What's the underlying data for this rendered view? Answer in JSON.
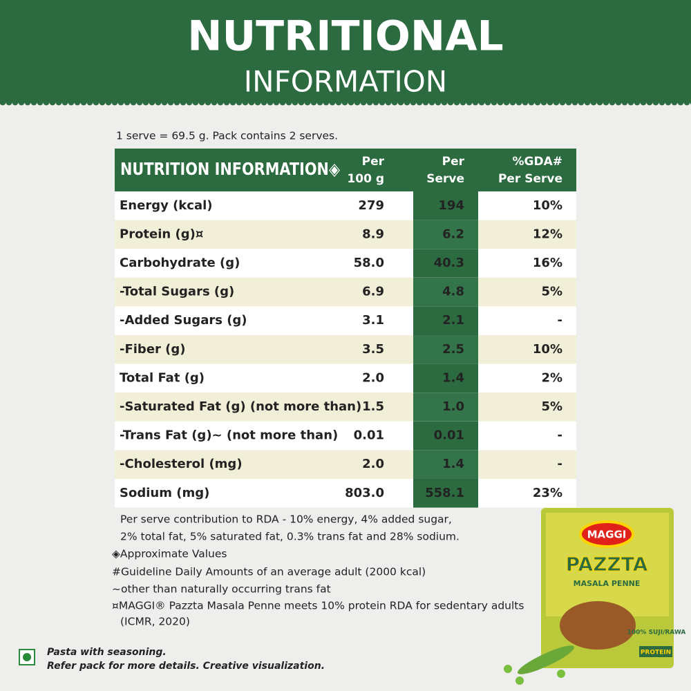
{
  "header": {
    "title": "NUTRITIONAL",
    "subtitle": "INFORMATION"
  },
  "serving_note": "1 serve = 69.5 g. Pack contains 2 serves.",
  "table": {
    "columns": [
      [
        "NUTRITION INFORMATION◈"
      ],
      [
        "Per",
        "100 g"
      ],
      [
        "Per",
        "Serve"
      ],
      [
        "%GDA#",
        "Per Serve"
      ]
    ],
    "rows": [
      [
        "Energy (kcal)",
        "279",
        "194",
        "10%"
      ],
      [
        "Protein (g)¤",
        "8.9",
        "6.2",
        "12%"
      ],
      [
        "Carbohydrate (g)",
        "58.0",
        "40.3",
        "16%"
      ],
      [
        " -Total Sugars (g)",
        "6.9",
        "4.8",
        "5%"
      ],
      [
        "  -Added Sugars (g)",
        "3.1",
        "2.1",
        "-"
      ],
      [
        "-Fiber (g)",
        "3.5",
        "2.5",
        "10%"
      ],
      [
        "Total Fat (g)",
        "2.0",
        "1.4",
        "2%"
      ],
      [
        " -Saturated Fat (g) (not more than)",
        "1.5",
        "1.0",
        "5%"
      ],
      [
        " -Trans Fat (g)~  (not more than)",
        "0.01",
        "0.01",
        "-"
      ],
      [
        " -Cholesterol (mg)",
        "2.0",
        "1.4",
        "-"
      ],
      [
        "Sodium (mg)",
        "803.0",
        "558.1",
        "23%"
      ]
    ]
  },
  "footnotes": [
    "Per serve contribution to RDA - 10% energy, 4% added sugar,",
    "2% total fat, 5% saturated fat, 0.3% trans fat and 28% sodium.",
    "◈Approximate Values",
    "#Guideline Daily Amounts of an average adult (2000 kcal)",
    "~other than naturally occurring trans fat",
    "¤MAGGI® Pazzta Masala Penne meets 10% protein RDA for sedentary adults",
    "(ICMR, 2020)"
  ],
  "bottom_note": [
    "Pasta with seasoning.",
    "Refer pack for more details. Creative visualization."
  ],
  "package": {
    "brand": "MAGGI",
    "name": "PAZZTA",
    "variant": "MASALA PENNE",
    "claim": "100% SUJI/RAWA",
    "badge": "PROTEIN"
  }
}
